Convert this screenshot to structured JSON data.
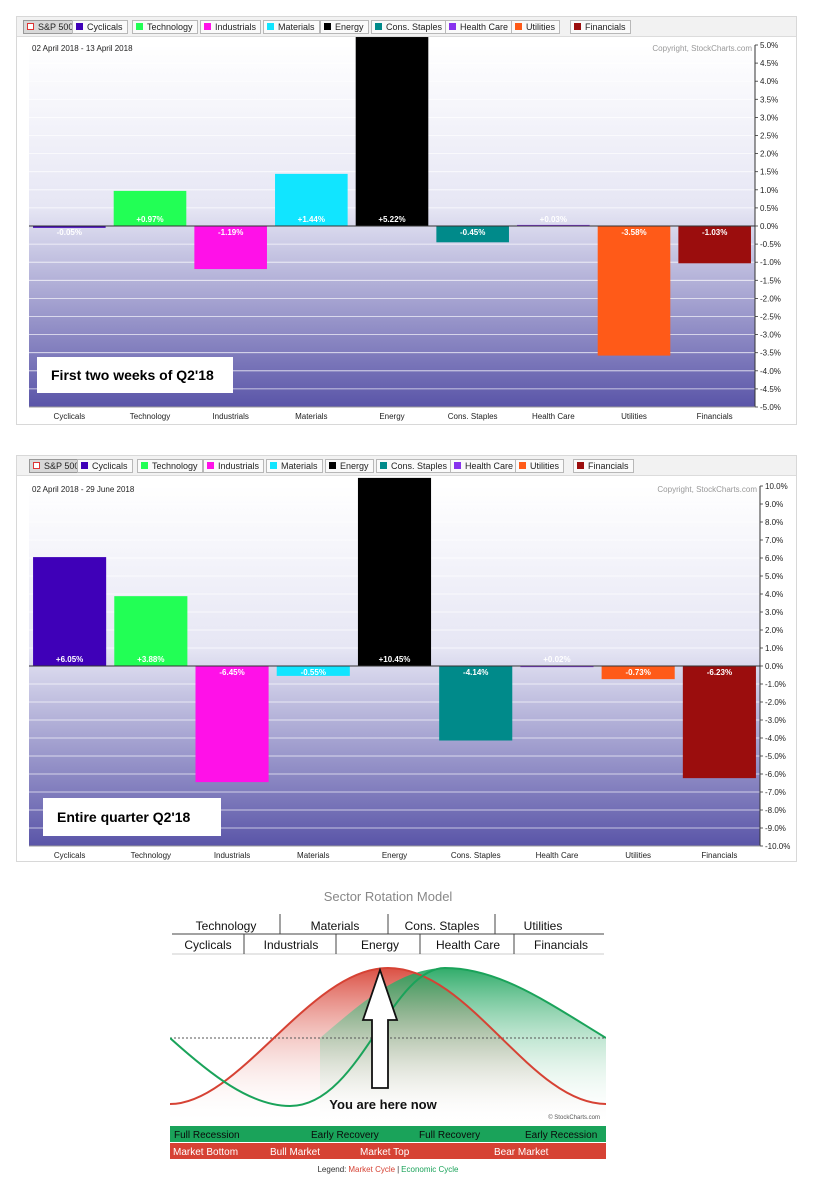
{
  "legend": {
    "items": [
      "S&P 500",
      "Cyclicals",
      "Technology",
      "Industrials",
      "Materials",
      "Energy",
      "Cons. Staples",
      "Health Care",
      "Utilities",
      "Financials"
    ],
    "colors": [
      "#ffffff",
      "#3f00b8",
      "#22ff55",
      "#ff11e8",
      "#11e5ff",
      "#000000",
      "#008a8a",
      "#8833ee",
      "#ff5a18",
      "#9b0d0d"
    ]
  },
  "chart_data": [
    {
      "type": "bar",
      "date_range": "02 April 2018 - 13 April 2018",
      "copyright": "Copyright, StockCharts.com",
      "annotation": "First two weeks of Q2'18",
      "categories": [
        "Cyclicals",
        "Technology",
        "Industrials",
        "Materials",
        "Energy",
        "Cons. Staples",
        "Health Care",
        "Utilities",
        "Financials"
      ],
      "values": [
        -0.05,
        0.97,
        -1.19,
        1.44,
        5.22,
        -0.45,
        0.03,
        -3.58,
        -1.03
      ],
      "value_labels": [
        "-0.05%",
        "+0.97%",
        "-1.19%",
        "+1.44%",
        "+5.22%",
        "-0.45%",
        "+0.03%",
        "-3.58%",
        "-1.03%"
      ],
      "colors": [
        "#3f00b8",
        "#22ff55",
        "#ff11e8",
        "#11e5ff",
        "#000000",
        "#008a8a",
        "#8833ee",
        "#ff5a18",
        "#9b0d0d"
      ],
      "ylim": [
        -5.0,
        5.0
      ],
      "yticks": [
        "5.0%",
        "4.5%",
        "4.0%",
        "3.5%",
        "3.0%",
        "2.5%",
        "2.0%",
        "1.5%",
        "1.0%",
        "0.5%",
        "0.0%",
        "-0.5%",
        "-1.0%",
        "-1.5%",
        "-2.0%",
        "-2.5%",
        "-3.0%",
        "-3.5%",
        "-4.0%",
        "-4.5%",
        "-5.0%"
      ],
      "grid": true
    },
    {
      "type": "bar",
      "date_range": "02 April 2018 - 29 June 2018",
      "copyright": "Copyright, StockCharts.com",
      "annotation": "Entire quarter Q2'18",
      "categories": [
        "Cyclicals",
        "Technology",
        "Industrials",
        "Materials",
        "Energy",
        "Cons. Staples",
        "Health Care",
        "Utilities",
        "Financials"
      ],
      "values": [
        6.05,
        3.88,
        -6.45,
        -0.55,
        10.45,
        -4.14,
        0.02,
        -0.73,
        -6.23
      ],
      "value_labels": [
        "+6.05%",
        "+3.88%",
        "-6.45%",
        "-0.55%",
        "+10.45%",
        "-4.14%",
        "+0.02%",
        "-0.73%",
        "-6.23%"
      ],
      "colors": [
        "#3f00b8",
        "#22ff55",
        "#ff11e8",
        "#11e5ff",
        "#000000",
        "#008a8a",
        "#8833ee",
        "#ff5a18",
        "#9b0d0d"
      ],
      "ylim": [
        -10.0,
        10.0
      ],
      "yticks": [
        "10.0%",
        "9.0%",
        "8.0%",
        "7.0%",
        "6.0%",
        "5.0%",
        "4.0%",
        "3.0%",
        "2.0%",
        "1.0%",
        "0.0%",
        "-1.0%",
        "-2.0%",
        "-3.0%",
        "-4.0%",
        "-5.0%",
        "-6.0%",
        "-7.0%",
        "-8.0%",
        "-9.0%",
        "-10.0%"
      ],
      "grid": true
    }
  ],
  "rotation_model": {
    "title": "Sector Rotation Model",
    "row1": [
      "Technology",
      "Materials",
      "Cons. Staples",
      "Utilities"
    ],
    "row2": [
      "Cyclicals",
      "Industrials",
      "Energy",
      "Health Care",
      "Financials"
    ],
    "marker_text": "You are here now",
    "credit": "© StockCharts.com",
    "economic_cycle": [
      "Full Recession",
      "Early Recovery",
      "Full Recovery",
      "Early Recession"
    ],
    "market_cycle": [
      "Market Bottom",
      "Bull Market",
      "Market Top",
      "Bear Market"
    ],
    "legend_label": "Legend:",
    "legend_market": "Market Cycle",
    "legend_separator": "|",
    "legend_economic": "Economic Cycle",
    "market_color": "#d64234",
    "economic_color": "#1aa35a"
  }
}
